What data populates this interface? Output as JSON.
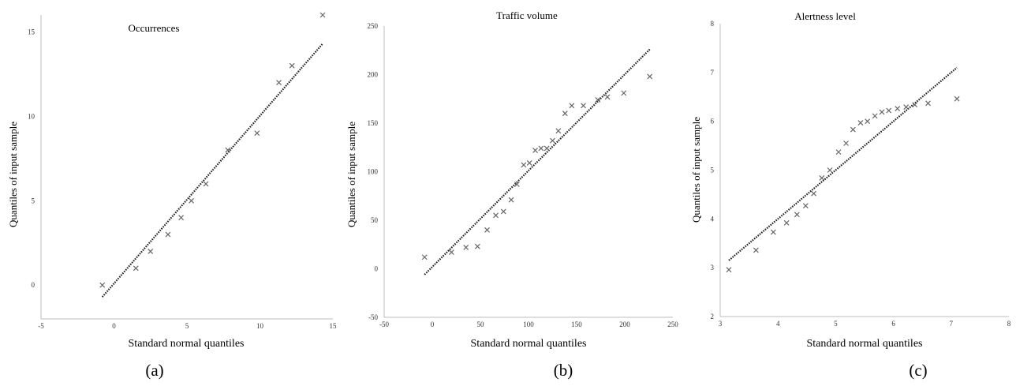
{
  "chart_data": [
    {
      "type": "scatter",
      "panel_label": "(a)",
      "title": "Occurrences",
      "xlabel": "Standard normal quantiles",
      "ylabel": "Quantiles of input sample",
      "xlim": [
        -5,
        15
      ],
      "ylim": [
        -2,
        16
      ],
      "xticks": [
        "-5",
        "0",
        "5",
        "10",
        "15"
      ],
      "yticks": [
        "0",
        "5",
        "10",
        "15"
      ],
      "reference_line": {
        "x": [
          -0.8,
          14.3
        ],
        "y": [
          -0.7,
          14.3
        ]
      },
      "points": {
        "x": [
          -0.8,
          1.5,
          2.5,
          3.7,
          4.6,
          5.3,
          6.3,
          7.8,
          9.8,
          11.3,
          12.2,
          14.3
        ],
        "y": [
          0,
          1,
          2,
          3,
          4,
          5,
          6,
          8,
          9,
          12,
          13,
          16
        ]
      },
      "grid": false
    },
    {
      "type": "scatter",
      "panel_label": "(b)",
      "title": "Traffic volume",
      "xlabel": "Standard normal quantiles",
      "ylabel": "Quantiles of input sample",
      "xlim": [
        -50,
        250
      ],
      "ylim": [
        -50,
        250
      ],
      "xticks": [
        "-50",
        "0",
        "50",
        "100",
        "150",
        "200",
        "250"
      ],
      "yticks": [
        "-50",
        "0",
        "50",
        "100",
        "150",
        "200",
        "250"
      ],
      "reference_line": {
        "x": [
          -8,
          226
        ],
        "y": [
          -6,
          226
        ]
      },
      "points": {
        "x": [
          -8,
          20,
          35,
          47,
          57,
          66,
          74,
          82,
          88,
          95,
          101,
          107,
          113,
          119,
          125,
          131,
          138,
          145,
          157,
          172,
          182,
          199,
          226
        ],
        "y": [
          12,
          17,
          22,
          23,
          40,
          55,
          59,
          71,
          87,
          107,
          109,
          122,
          124,
          124,
          132,
          142,
          160,
          168,
          168,
          174,
          177,
          181,
          198
        ]
      },
      "grid": false
    },
    {
      "type": "scatter",
      "panel_label": "(c)",
      "title": "Alertness level",
      "xlabel": "Standard normal quantiles",
      "ylabel": "Quantiles of input sample",
      "xlim": [
        3,
        8
      ],
      "ylim": [
        2,
        8
      ],
      "xticks": [
        "3",
        "4",
        "5",
        "6",
        "7",
        "8"
      ],
      "yticks": [
        "2",
        "3",
        "4",
        "5",
        "6",
        "7",
        "8"
      ],
      "reference_line": {
        "x": [
          3.15,
          7.1
        ],
        "y": [
          3.15,
          7.1
        ]
      },
      "points": {
        "x": [
          3.15,
          3.62,
          3.92,
          4.15,
          4.33,
          4.48,
          4.62,
          4.76,
          4.9,
          5.05,
          5.18,
          5.3,
          5.43,
          5.55,
          5.68,
          5.8,
          5.92,
          6.07,
          6.22,
          6.37,
          6.6,
          7.1
        ],
        "y": [
          2.96,
          3.36,
          3.73,
          3.92,
          4.09,
          4.27,
          4.52,
          4.84,
          5.0,
          5.37,
          5.55,
          5.83,
          5.97,
          6.0,
          6.11,
          6.19,
          6.22,
          6.26,
          6.29,
          6.34,
          6.37,
          6.46
        ]
      },
      "grid": false
    }
  ]
}
